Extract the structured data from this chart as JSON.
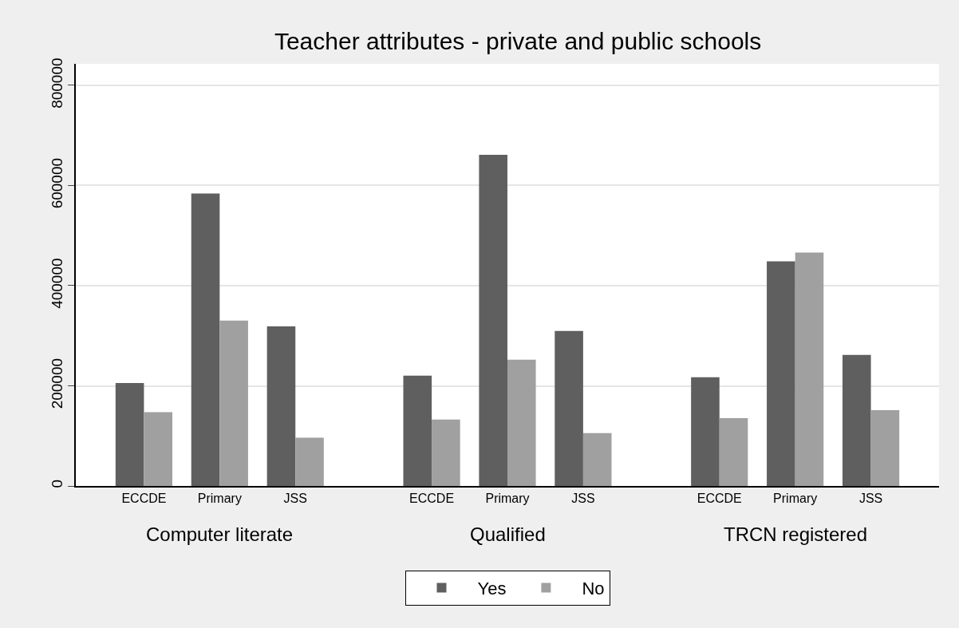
{
  "chart_data": {
    "type": "bar",
    "title": "Teacher attributes - private and public schools",
    "categories": [
      "ECCDE",
      "Primary",
      "JSS",
      "ECCDE",
      "Primary",
      "JSS",
      "ECCDE",
      "Primary",
      "JSS"
    ],
    "series": [
      {
        "name": "Yes",
        "color": "#5f5f5f",
        "values": [
          205500,
          584000,
          318800,
          220300,
          661500,
          309700,
          217000,
          448600,
          261900
        ]
      },
      {
        "name": "No",
        "color": "#a0a0a0",
        "values": [
          147400,
          330300,
          96300,
          132600,
          252200,
          105400,
          135500,
          466200,
          151400
        ]
      }
    ],
    "annotations": [
      "Computer literate",
      "Qualified",
      "TRCN registered"
    ],
    "ylim": [
      0,
      843000
    ],
    "yticks": [
      0,
      200000,
      400000,
      600000,
      800000
    ],
    "grid": "y",
    "legend": "bottom"
  }
}
